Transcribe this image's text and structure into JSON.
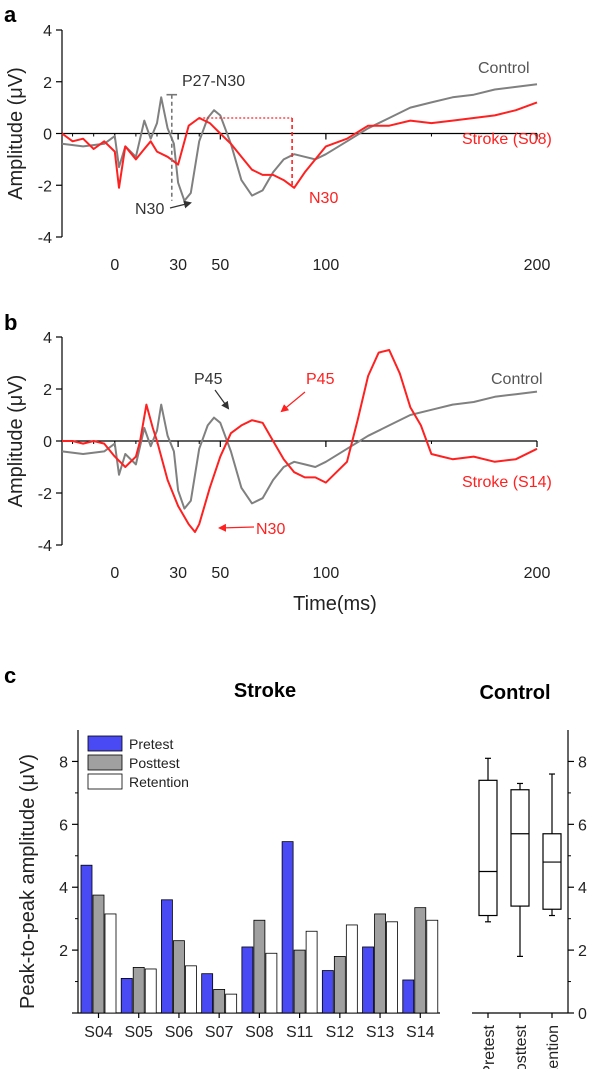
{
  "chart_data": [
    {
      "panel": "a",
      "type": "line",
      "ylabel": "Amplitude (μV)",
      "xlabel": "",
      "xlim": [
        -25,
        200
      ],
      "ylim": [
        -4,
        4
      ],
      "x_ticks": [
        0,
        30,
        50,
        100,
        200
      ],
      "y_ticks": [
        -4,
        -2,
        0,
        2,
        4
      ],
      "series": [
        {
          "name": "Control",
          "color": "#808080",
          "x": [
            -25,
            -15,
            -5,
            0,
            2,
            5,
            10,
            14,
            17,
            20,
            22,
            25,
            28,
            30,
            33,
            36,
            40,
            44,
            47,
            50,
            55,
            60,
            65,
            70,
            75,
            80,
            85,
            90,
            95,
            100,
            110,
            120,
            130,
            140,
            150,
            160,
            170,
            180,
            190,
            200
          ],
          "y": [
            -0.4,
            -0.5,
            -0.4,
            -0.1,
            -1.3,
            -0.5,
            -0.9,
            0.5,
            -0.2,
            0.4,
            1.4,
            0.2,
            -0.4,
            -1.9,
            -2.6,
            -2.3,
            -0.3,
            0.6,
            0.9,
            0.7,
            -0.4,
            -1.8,
            -2.4,
            -2.2,
            -1.5,
            -1.0,
            -0.8,
            -0.9,
            -1.0,
            -0.8,
            -0.3,
            0.2,
            0.6,
            1.0,
            1.2,
            1.4,
            1.5,
            1.7,
            1.8,
            1.9
          ]
        },
        {
          "name": "Stroke (S08)",
          "color": "#ff2020",
          "x": [
            -25,
            -20,
            -15,
            -10,
            -5,
            0,
            2,
            5,
            10,
            14,
            17,
            20,
            25,
            30,
            35,
            40,
            45,
            50,
            55,
            60,
            65,
            70,
            75,
            80,
            85,
            90,
            95,
            100,
            110,
            120,
            130,
            140,
            150,
            160,
            170,
            180,
            190,
            200
          ],
          "y": [
            0.0,
            -0.3,
            -0.2,
            -0.6,
            -0.3,
            -0.7,
            -2.1,
            -0.5,
            -1.0,
            -0.6,
            -0.3,
            -0.7,
            -0.9,
            -1.2,
            0.3,
            0.6,
            0.4,
            0.0,
            -0.4,
            -0.9,
            -1.4,
            -1.6,
            -1.6,
            -1.8,
            -2.1,
            -1.5,
            -1.0,
            -0.5,
            -0.2,
            0.3,
            0.3,
            0.5,
            0.4,
            0.5,
            0.6,
            0.7,
            0.9,
            1.2
          ]
        }
      ],
      "annotations": [
        "P27-N30",
        "N30",
        "N30"
      ]
    },
    {
      "panel": "b",
      "type": "line",
      "ylabel": "Amplitude (μV)",
      "xlabel": "Time(ms)",
      "xlim": [
        -25,
        200
      ],
      "ylim": [
        -4,
        4
      ],
      "x_ticks": [
        0,
        30,
        50,
        100,
        200
      ],
      "y_ticks": [
        -4,
        -2,
        0,
        2,
        4
      ],
      "series": [
        {
          "name": "Control",
          "color": "#808080",
          "x": [
            -25,
            -15,
            -5,
            0,
            2,
            5,
            10,
            14,
            17,
            20,
            22,
            25,
            28,
            30,
            33,
            36,
            40,
            44,
            47,
            50,
            55,
            60,
            65,
            70,
            75,
            80,
            85,
            90,
            95,
            100,
            110,
            120,
            130,
            140,
            150,
            160,
            170,
            180,
            190,
            200
          ],
          "y": [
            -0.4,
            -0.5,
            -0.4,
            -0.1,
            -1.3,
            -0.5,
            -0.9,
            0.5,
            -0.2,
            0.4,
            1.4,
            0.2,
            -0.4,
            -1.9,
            -2.6,
            -2.3,
            -0.3,
            0.6,
            0.9,
            0.7,
            -0.4,
            -1.8,
            -2.4,
            -2.2,
            -1.5,
            -1.0,
            -0.8,
            -0.9,
            -1.0,
            -0.8,
            -0.3,
            0.2,
            0.6,
            1.0,
            1.2,
            1.4,
            1.5,
            1.7,
            1.8,
            1.9
          ]
        },
        {
          "name": "Stroke (S14)",
          "color": "#ff2020",
          "x": [
            -25,
            -20,
            -15,
            -10,
            -5,
            0,
            5,
            10,
            12,
            15,
            18,
            20,
            25,
            30,
            35,
            38,
            40,
            45,
            50,
            55,
            60,
            65,
            70,
            75,
            80,
            85,
            90,
            95,
            100,
            110,
            115,
            120,
            125,
            130,
            135,
            140,
            145,
            150,
            155,
            160,
            170,
            180,
            190,
            200
          ],
          "y": [
            0.0,
            0.0,
            -0.1,
            0.0,
            -0.1,
            -0.6,
            -1.0,
            -0.6,
            0.0,
            1.4,
            0.5,
            0.0,
            -1.5,
            -2.5,
            -3.2,
            -3.5,
            -3.2,
            -1.8,
            -0.6,
            0.3,
            0.6,
            0.8,
            0.7,
            0.0,
            -0.7,
            -1.2,
            -1.4,
            -1.4,
            -1.6,
            -0.8,
            0.8,
            2.5,
            3.4,
            3.5,
            2.6,
            1.3,
            0.6,
            -0.5,
            -0.6,
            -0.7,
            -0.6,
            -0.8,
            -0.7,
            -0.3
          ]
        }
      ],
      "annotations": [
        "P45",
        "P45",
        "N30"
      ]
    },
    {
      "panel": "c",
      "type": "bar",
      "title": "Stroke",
      "ylabel": "Peak-to-peak amplitude (μV)",
      "ylim": [
        0,
        9
      ],
      "y_ticks": [
        0,
        2,
        4,
        6,
        8
      ],
      "categories": [
        "S04",
        "S05",
        "S06",
        "S07",
        "S08",
        "S11",
        "S12",
        "S13",
        "S14"
      ],
      "series": [
        {
          "name": "Pretest",
          "color": "#4a4af5",
          "values": [
            4.7,
            1.1,
            3.6,
            1.25,
            2.1,
            5.45,
            1.35,
            2.1,
            1.05
          ]
        },
        {
          "name": "Posttest",
          "color": "#a0a0a0",
          "values": [
            3.75,
            1.45,
            2.3,
            0.75,
            2.95,
            2.0,
            1.8,
            3.15,
            3.35
          ]
        },
        {
          "name": "Retention",
          "color": "#ffffff",
          "values": [
            3.15,
            1.4,
            1.5,
            0.6,
            1.9,
            2.6,
            2.8,
            2.9,
            2.95
          ]
        }
      ],
      "legend": "top-left"
    },
    {
      "panel": "c",
      "type": "box",
      "title": "Control",
      "ylim": [
        0,
        9
      ],
      "y_ticks": [
        0,
        2,
        4,
        6,
        8
      ],
      "categories": [
        "Pretest",
        "Posttest",
        "Retention"
      ],
      "boxes": [
        {
          "min": 2.9,
          "q1": 3.1,
          "median": 4.5,
          "q3": 7.4,
          "max": 8.1
        },
        {
          "min": 1.8,
          "q1": 3.4,
          "median": 5.7,
          "q3": 7.1,
          "max": 7.3
        },
        {
          "min": 3.1,
          "q1": 3.3,
          "median": 4.8,
          "q3": 5.7,
          "max": 7.6
        }
      ]
    }
  ],
  "labels": {
    "panel_a": "a",
    "panel_b": "b",
    "panel_c": "c",
    "a_control": "Control",
    "a_stroke": "Stroke (S08)",
    "a_p27n30": "P27-N30",
    "a_n30_grey": "N30",
    "a_n30_red": "N30",
    "b_control": "Control",
    "b_stroke": "Stroke (S14)",
    "b_p45_grey": "P45",
    "b_p45_red": "P45",
    "b_n30": "N30",
    "b_xlabel": "Time(ms)",
    "c_stroke_title": "Stroke",
    "c_control_title": "Control"
  }
}
